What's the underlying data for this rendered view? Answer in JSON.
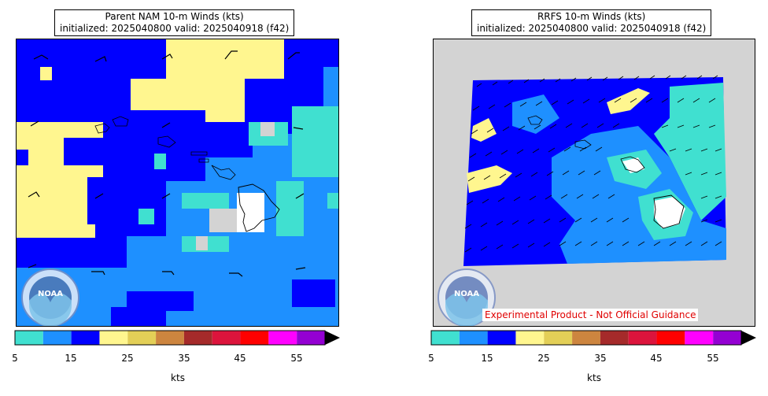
{
  "left": {
    "title_line1": "Parent NAM 10-m Winds (kts)",
    "title_line2": "initialized: 2025040800 valid: 2025040918 (f42)",
    "logo_text": "NOAA",
    "colorbar": {
      "ticks": [
        "5",
        "15",
        "25",
        "35",
        "45",
        "55"
      ],
      "units": "kts"
    }
  },
  "right": {
    "title_line1": "RRFS 10-m Winds (kts)",
    "title_line2": "initialized: 2025040800 valid: 2025040918 (f42)",
    "logo_text": "NOAA",
    "disclaimer": "Experimental Product - Not Official Guidance",
    "colorbar": {
      "ticks": [
        "5",
        "15",
        "25",
        "35",
        "45",
        "55"
      ],
      "units": "kts"
    }
  },
  "colorbar_colors": [
    "#40e0d0",
    "#1e90ff",
    "#0000ff",
    "#fff68f",
    "#e3cf57",
    "#cd853f",
    "#a52a2a",
    "#dc143c",
    "#ff0000",
    "#ff00ff",
    "#9400d3"
  ],
  "colorbar_bounds_kts": [
    5,
    10,
    15,
    20,
    25,
    30,
    35,
    40,
    45,
    50,
    55,
    60
  ],
  "colorbar_extend": "max",
  "colors": {
    "land_mask": "#d3d3d3",
    "low_wind": "#ffffff",
    "barb": "#000000"
  }
}
